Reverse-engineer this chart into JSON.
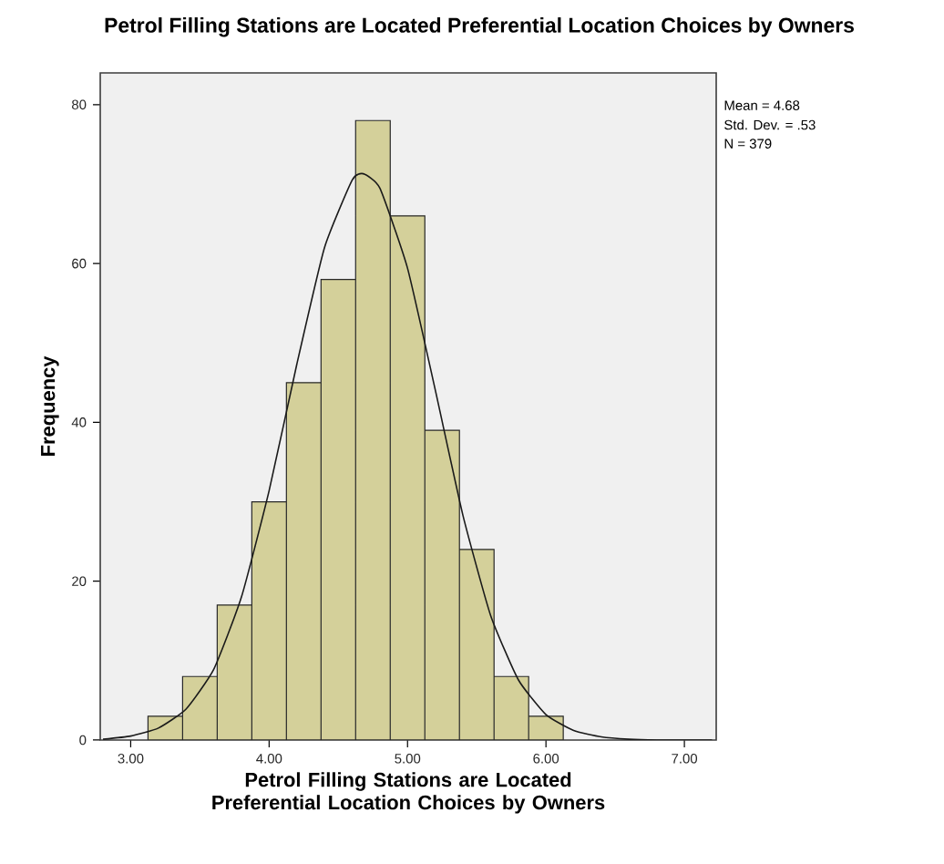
{
  "chart_data": {
    "type": "histogram",
    "title": "Petrol Filling Stations are Located Preferential Location Choices by Owners",
    "xlabel": "Petrol Filling Stations are Located Preferential Location Choices by Owners",
    "ylabel": "Frequency",
    "annotations": [
      "Mean = 4.68",
      "Std. Dev. = .53",
      "N = 379"
    ],
    "series": [
      {
        "type": "histogram",
        "color": "#d4d09a",
        "bins": [
          3.125,
          3.375,
          3.625,
          3.875,
          4.125,
          4.375,
          4.625,
          4.875,
          5.125,
          5.375,
          5.625,
          5.875,
          6.125
        ],
        "values": [
          3,
          8,
          17,
          30,
          45,
          58,
          78,
          66,
          39,
          24,
          8,
          3
        ]
      },
      {
        "type": "line",
        "color": "#1a1a1a",
        "x": [
          2.8,
          3.0,
          3.2,
          3.4,
          3.6,
          3.8,
          4.0,
          4.2,
          4.4,
          4.6,
          4.68,
          4.8,
          5.0,
          5.2,
          5.4,
          5.6,
          5.8,
          6.0,
          6.2,
          6.4,
          6.6,
          6.8,
          7.0,
          7.2
        ],
        "values": [
          0.1,
          0.5,
          1.5,
          3.9,
          8.9,
          18.0,
          31.4,
          47.3,
          62.0,
          70.5,
          71.3,
          69.5,
          59.4,
          44.1,
          28.3,
          15.7,
          7.6,
          3.2,
          1.2,
          0.4,
          0.1,
          0.0,
          0.0,
          0.0
        ]
      }
    ],
    "xlim": [
      2.78,
      7.23
    ],
    "ylim": [
      0,
      84
    ],
    "xticks": [
      {
        "value": 3,
        "label": "3.00"
      },
      {
        "value": 4,
        "label": "4.00"
      },
      {
        "value": 5,
        "label": "5.00"
      },
      {
        "value": 6,
        "label": "6.00"
      },
      {
        "value": 7,
        "label": "7.00"
      }
    ],
    "yticks": [
      0,
      20,
      40,
      60,
      80
    ],
    "grid": false
  }
}
